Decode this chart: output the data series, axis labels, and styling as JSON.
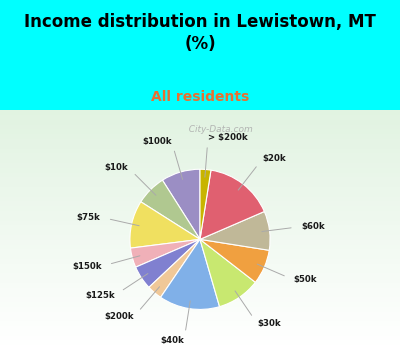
{
  "title": "Income distribution in Lewistown, MT\n(%)",
  "subtitle": "All residents",
  "title_color": "#000000",
  "subtitle_color": "#e87030",
  "bg_cyan": "#00ffff",
  "bg_chart_colors": [
    "#e8f8f0",
    "#d0eee0"
  ],
  "labels": [
    "$100k",
    "$10k",
    "$75k",
    "$150k",
    "$125k",
    "$200k",
    "$40k",
    "$30k",
    "$50k",
    "$60k",
    "$20k",
    "> $200k"
  ],
  "values": [
    9.0,
    7.0,
    11.0,
    4.5,
    5.5,
    3.5,
    14.0,
    10.0,
    8.0,
    9.0,
    16.0,
    2.5
  ],
  "colors": [
    "#9b8ec4",
    "#b0c890",
    "#f0e060",
    "#f0b0b8",
    "#8080d0",
    "#f0c898",
    "#80b0e8",
    "#c8e870",
    "#f0a040",
    "#c0b898",
    "#e06070",
    "#c8b400"
  ],
  "startangle": 90,
  "watermark": "  City-Data.com"
}
